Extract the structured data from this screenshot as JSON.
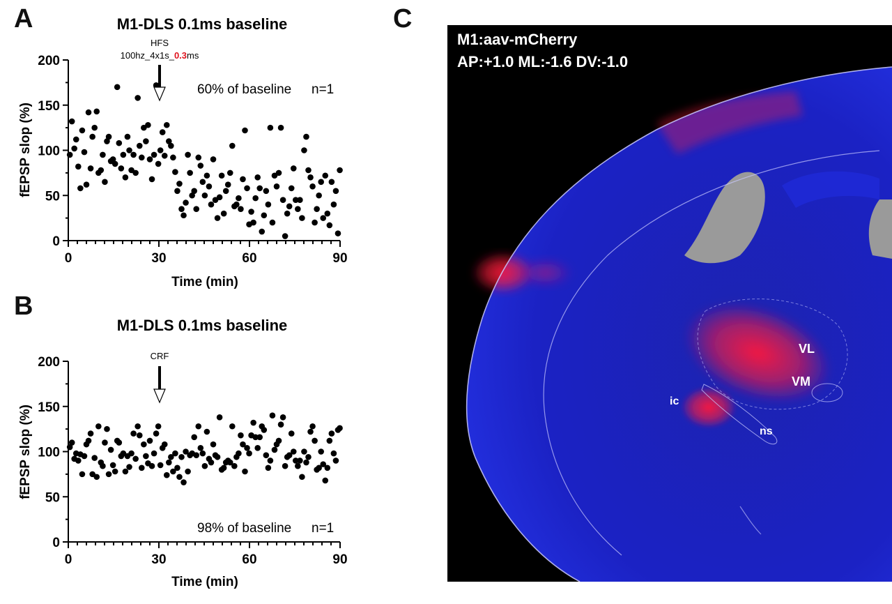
{
  "panel_letters": {
    "a": "A",
    "b": "B",
    "c": "C"
  },
  "chart_data": [
    {
      "type": "scatter",
      "title": "M1-DLS 0.1ms baseline",
      "xlabel": "Time (min)",
      "ylabel": "fEPSP slop (%)",
      "xlim": [
        0,
        90
      ],
      "ylim": [
        0,
        200
      ],
      "x_ticks": [
        0,
        30,
        60,
        90
      ],
      "y_ticks": [
        0,
        50,
        100,
        150,
        200
      ],
      "grid": false,
      "annotation": {
        "label": "HFS",
        "sublabel_parts": [
          "100hz_4x1s_",
          "0.3",
          "ms"
        ],
        "highlight_color": "#e0141e",
        "x": 30
      },
      "summary": {
        "text": "60% of baseline",
        "n": "n=1"
      },
      "series": [
        {
          "color": "#000000",
          "x": [
            0.5,
            1.2,
            2.0,
            2.6,
            3.3,
            4.0,
            4.6,
            5.3,
            6.0,
            6.7,
            7.4,
            8.0,
            8.7,
            9.4,
            10.0,
            10.8,
            11.4,
            12.1,
            12.8,
            13.4,
            14.1,
            14.8,
            15.5,
            16.2,
            16.8,
            17.5,
            18.2,
            18.9,
            19.6,
            20.2,
            20.9,
            21.6,
            22.3,
            23.0,
            23.6,
            24.3,
            25.0,
            25.7,
            26.4,
            27.0,
            27.7,
            28.4,
            29.1,
            29.8,
            30.5,
            31.2,
            31.9,
            32.6,
            33.3,
            34.0,
            34.7,
            35.4,
            36.1,
            36.8,
            37.5,
            38.2,
            38.9,
            39.6,
            40.3,
            41.0,
            41.7,
            42.4,
            43.1,
            43.8,
            44.5,
            45.2,
            45.9,
            46.6,
            47.3,
            48.0,
            48.7,
            49.4,
            50.1,
            50.8,
            51.5,
            52.2,
            52.9,
            53.6,
            54.3,
            55.0,
            55.7,
            56.4,
            57.1,
            57.8,
            58.5,
            59.2,
            59.9,
            60.6,
            61.3,
            62.0,
            62.7,
            63.4,
            64.1,
            64.8,
            65.5,
            66.2,
            66.9,
            67.6,
            68.3,
            69.0,
            69.7,
            70.4,
            71.1,
            71.8,
            72.5,
            73.2,
            73.9,
            74.6,
            75.3,
            76.0,
            76.7,
            77.4,
            78.1,
            78.8,
            79.5,
            80.2,
            80.9,
            81.6,
            82.3,
            83.0,
            83.7,
            84.4,
            85.1,
            85.8,
            86.5,
            87.2,
            87.9,
            88.6,
            89.3,
            89.9
          ],
          "y": [
            95,
            132,
            102,
            112,
            82,
            58,
            122,
            98,
            62,
            142,
            80,
            115,
            125,
            143,
            75,
            78,
            95,
            65,
            110,
            115,
            88,
            90,
            85,
            170,
            108,
            80,
            95,
            70,
            115,
            100,
            78,
            95,
            75,
            158,
            105,
            92,
            125,
            110,
            128,
            90,
            68,
            95,
            172,
            85,
            100,
            120,
            94,
            128,
            110,
            105,
            92,
            76,
            55,
            63,
            35,
            28,
            42,
            95,
            75,
            50,
            55,
            35,
            92,
            83,
            65,
            50,
            72,
            60,
            40,
            90,
            45,
            25,
            48,
            72,
            30,
            55,
            62,
            75,
            105,
            38,
            40,
            47,
            35,
            68,
            122,
            58,
            18,
            32,
            20,
            47,
            70,
            58,
            10,
            28,
            55,
            40,
            125,
            20,
            72,
            60,
            75,
            125,
            45,
            5,
            30,
            38,
            58,
            80,
            45,
            35,
            45,
            25,
            100,
            115,
            78,
            70,
            60,
            20,
            35,
            50,
            65,
            25,
            72,
            30,
            17,
            65,
            40,
            55,
            8,
            78
          ]
        }
      ]
    },
    {
      "type": "scatter",
      "title": "M1-DLS 0.1ms baseline",
      "xlabel": "Time (min)",
      "ylabel": "fEPSP slop (%)",
      "xlim": [
        0,
        90
      ],
      "ylim": [
        0,
        200
      ],
      "x_ticks": [
        0,
        30,
        60,
        90
      ],
      "y_ticks": [
        0,
        50,
        100,
        150,
        200
      ],
      "grid": false,
      "annotation": {
        "label": "CRF",
        "x": 30
      },
      "summary": {
        "text": "98% of baseline",
        "n": "n=1"
      },
      "series": [
        {
          "color": "#000000",
          "x": [
            0.5,
            1.2,
            2.0,
            2.6,
            3.3,
            4.0,
            4.6,
            5.3,
            6.0,
            6.7,
            7.4,
            8.0,
            8.7,
            9.4,
            10.0,
            10.8,
            11.4,
            12.1,
            12.8,
            13.4,
            14.1,
            14.8,
            15.5,
            16.2,
            16.8,
            17.5,
            18.2,
            18.9,
            19.6,
            20.2,
            20.9,
            21.6,
            22.3,
            23.0,
            23.6,
            24.3,
            25.0,
            25.7,
            26.4,
            27.0,
            27.7,
            28.4,
            29.1,
            29.8,
            30.5,
            31.2,
            31.9,
            32.6,
            33.3,
            34.0,
            34.7,
            35.4,
            36.1,
            36.8,
            37.5,
            38.2,
            38.9,
            39.6,
            40.3,
            41.0,
            41.7,
            42.4,
            43.1,
            43.8,
            44.5,
            45.2,
            45.9,
            46.6,
            47.3,
            48.0,
            48.7,
            49.4,
            50.1,
            50.8,
            51.5,
            52.2,
            52.9,
            53.6,
            54.3,
            55.0,
            55.7,
            56.4,
            57.1,
            57.8,
            58.5,
            59.2,
            59.9,
            60.6,
            61.3,
            62.0,
            62.7,
            63.4,
            64.1,
            64.8,
            65.5,
            66.2,
            66.9,
            67.6,
            68.3,
            69.0,
            69.7,
            70.4,
            71.1,
            71.8,
            72.5,
            73.2,
            73.9,
            74.6,
            75.3,
            76.0,
            76.7,
            77.4,
            78.1,
            78.8,
            79.5,
            80.2,
            80.9,
            81.6,
            82.3,
            83.0,
            83.7,
            84.4,
            85.1,
            85.8,
            86.5,
            87.2,
            87.9,
            88.6,
            89.3,
            89.9
          ],
          "y": [
            105,
            110,
            92,
            98,
            90,
            97,
            75,
            95,
            108,
            112,
            120,
            75,
            93,
            72,
            128,
            88,
            84,
            110,
            125,
            75,
            102,
            85,
            78,
            112,
            110,
            95,
            98,
            78,
            95,
            83,
            98,
            120,
            92,
            128,
            118,
            82,
            108,
            95,
            87,
            112,
            84,
            98,
            120,
            128,
            85,
            104,
            108,
            74,
            88,
            94,
            78,
            98,
            82,
            72,
            94,
            66,
            100,
            78,
            96,
            98,
            116,
            96,
            128,
            104,
            98,
            84,
            122,
            92,
            88,
            108,
            96,
            94,
            138,
            80,
            82,
            88,
            90,
            88,
            128,
            84,
            94,
            98,
            118,
            108,
            78,
            104,
            98,
            118,
            132,
            116,
            104,
            116,
            128,
            124,
            96,
            82,
            90,
            140,
            102,
            108,
            112,
            130,
            138,
            84,
            94,
            96,
            120,
            100,
            90,
            84,
            90,
            72,
            100,
            88,
            94,
            122,
            128,
            112,
            80,
            82,
            100,
            86,
            68,
            82,
            112,
            120,
            98,
            90,
            124,
            126
          ]
        }
      ]
    }
  ],
  "histology": {
    "title_line1": "M1:aav-mCherry",
    "title_line2": "AP:+1.0 ML:-1.6 DV:-1.0",
    "labels": {
      "vl": "VL",
      "vm": "VM",
      "ic": "ic",
      "ns": "ns"
    },
    "colors": {
      "background": "#000000",
      "tissue": "#1a22b8",
      "signal": "#ff1a3c",
      "ventricle": "#9a9a9a",
      "outline": "#c9c9ff"
    }
  }
}
